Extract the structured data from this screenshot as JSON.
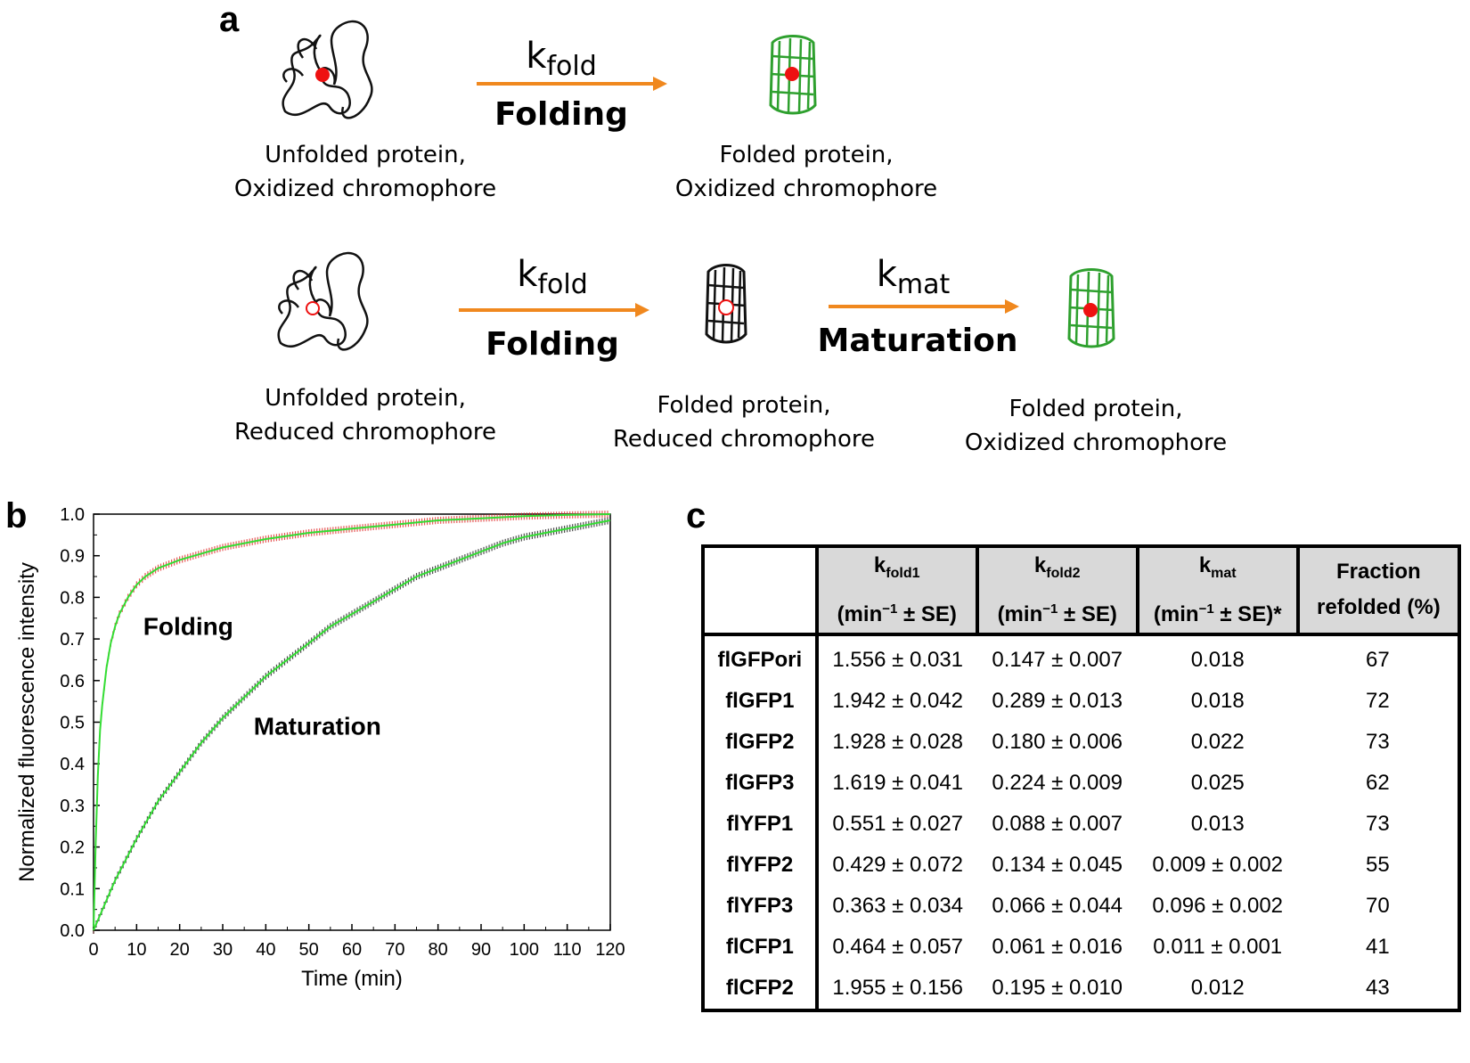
{
  "panel_a": {
    "letter": "a",
    "row1": {
      "left_caption_line1": "Unfolded protein,",
      "left_caption_line2": "Oxidized chromophore",
      "rate_k": "k",
      "rate_sub": "fold",
      "step": "Folding",
      "right_caption_line1": "Folded protein,",
      "right_caption_line2": "Oxidized chromophore"
    },
    "row2": {
      "left_caption_line1": "Unfolded protein,",
      "left_caption_line2": "Reduced chromophore",
      "rate1_k": "k",
      "rate1_sub": "fold",
      "step1": "Folding",
      "mid_caption_line1": "Folded protein,",
      "mid_caption_line2": "Reduced chromophore",
      "rate2_k": "k",
      "rate2_sub": "mat",
      "step2": "Maturation",
      "right_caption_line1": "Folded protein,",
      "right_caption_line2": "Oxidized chromophore"
    },
    "colors": {
      "arrow": "#f0881e",
      "folded_green": "#2ea02e",
      "chromophore": "#ee1111"
    }
  },
  "panel_b": {
    "letter": "b",
    "chart_data": {
      "type": "line",
      "xlabel": "Time (min)",
      "ylabel": "Normalized fluorescence intensity",
      "xlim": [
        0,
        120
      ],
      "ylim": [
        0,
        1.0
      ],
      "xticks": [
        0,
        10,
        20,
        30,
        40,
        50,
        60,
        70,
        80,
        90,
        100,
        110,
        120
      ],
      "yticks": [
        0.0,
        0.1,
        0.2,
        0.3,
        0.4,
        0.5,
        0.6,
        0.7,
        0.8,
        0.9,
        1.0
      ],
      "grid": false,
      "annotations": [
        {
          "text": "Folding",
          "x": 22,
          "y": 0.71
        },
        {
          "text": "Maturation",
          "x": 52,
          "y": 0.47
        }
      ],
      "series": [
        {
          "color": "#e02020",
          "x": [
            0,
            0.5,
            1,
            1.5,
            2,
            3,
            4,
            5,
            6,
            8,
            10,
            12,
            15,
            20,
            25,
            30,
            40,
            50,
            60,
            70,
            80,
            90,
            100,
            110,
            120
          ],
          "y": [
            0,
            0.21,
            0.37,
            0.48,
            0.54,
            0.63,
            0.69,
            0.73,
            0.76,
            0.8,
            0.83,
            0.85,
            0.87,
            0.89,
            0.905,
            0.92,
            0.94,
            0.955,
            0.965,
            0.975,
            0.985,
            0.99,
            0.995,
            0.998,
            1.0
          ]
        },
        {
          "color": "#111111",
          "x": [
            0,
            5,
            10,
            15,
            20,
            25,
            30,
            35,
            40,
            45,
            50,
            55,
            60,
            65,
            70,
            75,
            80,
            85,
            90,
            95,
            100,
            105,
            110,
            115,
            120
          ],
          "y": [
            0,
            0.12,
            0.22,
            0.31,
            0.38,
            0.45,
            0.51,
            0.56,
            0.61,
            0.65,
            0.69,
            0.73,
            0.76,
            0.79,
            0.82,
            0.85,
            0.87,
            0.89,
            0.91,
            0.93,
            0.945,
            0.955,
            0.965,
            0.975,
            0.985
          ]
        }
      ],
      "fit_color": "#33dd33"
    }
  },
  "panel_c": {
    "letter": "c",
    "headers": {
      "k1": "k",
      "k1_sub": "fold1",
      "k1_unit_a": "(min",
      "k1_unit_sup": "−1",
      "k1_unit_b": " ± SE)",
      "k2": "k",
      "k2_sub": "fold2",
      "k2_unit_a": "(min",
      "k2_unit_sup": "−1",
      "k2_unit_b": " ± SE)",
      "km": "k",
      "km_sub": "mat",
      "km_unit_a": "(min",
      "km_unit_sup": "−1",
      "km_unit_b": " ± SE)*",
      "frac_line1": "Fraction",
      "frac_line2": "refolded (%)"
    },
    "rows": [
      {
        "name": "flGFPori",
        "kfold1": "1.556 ± 0.031",
        "kfold2": "0.147 ± 0.007",
        "kmat": "0.018",
        "fraction": "67"
      },
      {
        "name": "flGFP1",
        "kfold1": "1.942 ± 0.042",
        "kfold2": "0.289 ± 0.013",
        "kmat": "0.018",
        "fraction": "72"
      },
      {
        "name": "flGFP2",
        "kfold1": "1.928 ± 0.028",
        "kfold2": "0.180 ± 0.006",
        "kmat": "0.022",
        "fraction": "73"
      },
      {
        "name": "flGFP3",
        "kfold1": "1.619 ± 0.041",
        "kfold2": "0.224 ± 0.009",
        "kmat": "0.025",
        "fraction": "62"
      },
      {
        "name": "flYFP1",
        "kfold1": "0.551 ± 0.027",
        "kfold2": "0.088 ± 0.007",
        "kmat": "0.013",
        "fraction": "73"
      },
      {
        "name": "flYFP2",
        "kfold1": "0.429 ± 0.072",
        "kfold2": "0.134 ± 0.045",
        "kmat": "0.009 ± 0.002",
        "fraction": "55"
      },
      {
        "name": "flYFP3",
        "kfold1": "0.363 ± 0.034",
        "kfold2": "0.066 ± 0.044",
        "kmat": "0.096 ± 0.002",
        "fraction": "70"
      },
      {
        "name": "flCFP1",
        "kfold1": "0.464 ± 0.057",
        "kfold2": "0.061 ± 0.016",
        "kmat": "0.011 ± 0.001",
        "fraction": "41"
      },
      {
        "name": "flCFP2",
        "kfold1": "1.955 ± 0.156",
        "kfold2": "0.195 ± 0.010",
        "kmat": "0.012",
        "fraction": "43"
      }
    ]
  }
}
